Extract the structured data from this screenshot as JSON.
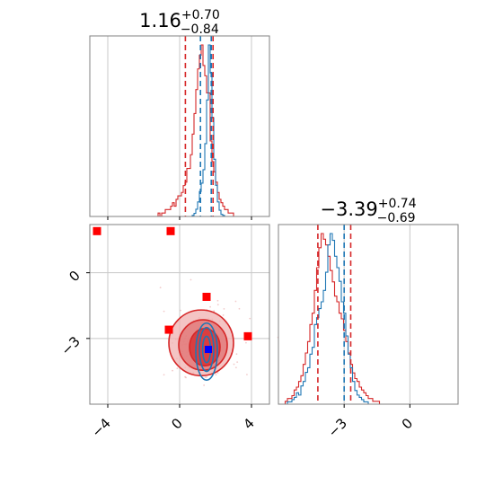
{
  "chart_data": {
    "type": "corner",
    "colors": {
      "series_a": "#1f77b4",
      "series_b": "#d62728",
      "marker_blue": "#0000ff",
      "marker_red": "#ff0000",
      "grid": "#c8c8c8",
      "frame": "#808080"
    },
    "panel_1": {
      "type": "histogram",
      "title": {
        "median": "1.16",
        "plus": "+0.70",
        "minus": "−0.84"
      },
      "x_range": [
        -5,
        5
      ],
      "quantile_lines_blue": [
        1.16
      ],
      "quantile_lines_red": [
        0.32,
        1.86
      ],
      "quantile_line_mixed": [
        1.86
      ],
      "series_a_counts": [
        0,
        0,
        0,
        0,
        0,
        0,
        0,
        0,
        0,
        0,
        0,
        0,
        0,
        0,
        0,
        0,
        0,
        0,
        0,
        0,
        0,
        0,
        0,
        0,
        0,
        0,
        0,
        0,
        0,
        0,
        0,
        0,
        0,
        0,
        0,
        0,
        0,
        0,
        0,
        0,
        0,
        0,
        0,
        0,
        0,
        0,
        0,
        0,
        0,
        0,
        0,
        0,
        0,
        0,
        0,
        0,
        0,
        1,
        3,
        7,
        14,
        24,
        32,
        45,
        70,
        112,
        165,
        138,
        95,
        55,
        30,
        14,
        6,
        2,
        1,
        0,
        0,
        0,
        0,
        0,
        0,
        0,
        0,
        0,
        0,
        0,
        0,
        0,
        0,
        0,
        0,
        0,
        0,
        0,
        0,
        0,
        0,
        0,
        0,
        0
      ],
      "series_b_counts": [
        0,
        0,
        0,
        0,
        0,
        0,
        0,
        0,
        0,
        0,
        0,
        0,
        0,
        0,
        0,
        0,
        0,
        0,
        0,
        0,
        0,
        0,
        0,
        0,
        0,
        0,
        0,
        0,
        0,
        0,
        0,
        0,
        0,
        0,
        0,
        0,
        0,
        0,
        1,
        0,
        1,
        1,
        2,
        2,
        2,
        3,
        4,
        3,
        5,
        6,
        6,
        7,
        9,
        10,
        14,
        14,
        18,
        24,
        30,
        37,
        43,
        47,
        50,
        44,
        41,
        36,
        36,
        22,
        16,
        13,
        10,
        7,
        5,
        4,
        3,
        2,
        2,
        1,
        1,
        1,
        0,
        0,
        0,
        0,
        0,
        0,
        0,
        0,
        0,
        0,
        0,
        0,
        0,
        0,
        0,
        0,
        0,
        0,
        0,
        0
      ]
    },
    "panel_2": {
      "type": "scatter-contour",
      "x_range": [
        -5,
        5
      ],
      "y_range": [
        -6,
        2.2
      ],
      "x_ticks": [
        -4,
        0,
        4
      ],
      "x_tick_labels": [
        "−4",
        "0",
        "4"
      ],
      "y_ticks": [
        0,
        -3
      ],
      "y_tick_labels": [
        "0",
        "−3"
      ],
      "series_b_contours": [
        {
          "cx": 1.2,
          "cy": -3.2,
          "rx": 1.8,
          "ry": 1.5
        },
        {
          "cx": 1.3,
          "cy": -3.3,
          "rx": 1.35,
          "ry": 1.15
        },
        {
          "cx": 1.4,
          "cy": -3.4,
          "rx": 0.85,
          "ry": 0.85
        }
      ],
      "series_a_contours": [
        {
          "cx": 1.5,
          "cy": -3.6,
          "rx": 0.6,
          "ry": 1.3
        },
        {
          "cx": 1.5,
          "cy": -3.5,
          "rx": 0.4,
          "ry": 1.0
        },
        {
          "cx": 1.5,
          "cy": -3.5,
          "rx": 0.22,
          "ry": 0.6
        }
      ],
      "red_markers": [
        {
          "x": -4.6,
          "y": 1.9
        },
        {
          "x": -0.5,
          "y": 1.9
        },
        {
          "x": 1.5,
          "y": -1.1
        },
        {
          "x": -0.6,
          "y": -2.6
        },
        {
          "x": 3.8,
          "y": -2.9
        }
      ],
      "blue_marker": {
        "x": 1.6,
        "y": -3.5
      }
    },
    "panel_3": {
      "type": "histogram",
      "title": {
        "median": "−3.39",
        "plus": "+0.74",
        "minus": "−0.69"
      },
      "x_range": [
        -6,
        2.2
      ],
      "x_ticks": [
        -3,
        0
      ],
      "x_tick_labels": [
        "−3",
        "0"
      ],
      "quantile_lines_blue": [
        -3.0
      ],
      "quantile_lines_red": [
        -4.2,
        -2.7
      ],
      "series_a_counts": [
        0,
        0,
        0,
        0,
        1,
        1,
        2,
        3,
        5,
        4,
        8,
        10,
        14,
        16,
        22,
        25,
        35,
        38,
        42,
        45,
        50,
        58,
        70,
        75,
        72,
        65,
        60,
        54,
        45,
        40,
        30,
        22,
        16,
        10,
        6,
        4,
        3,
        2,
        1,
        1,
        0,
        0,
        0,
        0,
        0,
        0,
        0,
        0,
        0,
        0,
        0,
        0,
        0,
        0,
        0,
        0,
        0,
        0,
        0,
        0,
        0,
        0,
        0,
        0,
        0,
        0,
        0,
        0,
        0,
        0,
        0,
        0,
        0,
        0,
        0,
        0,
        0,
        0,
        0,
        0
      ],
      "series_b_counts": [
        0,
        0,
        0,
        1,
        2,
        2,
        3,
        5,
        6,
        8,
        10,
        14,
        18,
        22,
        28,
        32,
        40,
        48,
        55,
        60,
        58,
        56,
        52,
        47,
        43,
        38,
        36,
        32,
        30,
        26,
        22,
        18,
        14,
        11,
        9,
        8,
        6,
        5,
        4,
        3,
        2,
        2,
        1,
        1,
        1,
        0,
        0,
        0,
        0,
        0,
        0,
        0,
        0,
        0,
        0,
        0,
        0,
        0,
        0,
        0,
        0,
        0,
        0,
        0,
        0,
        0,
        0,
        0,
        0,
        0,
        0,
        0,
        0,
        0,
        0,
        0,
        0,
        0,
        0,
        0
      ]
    }
  }
}
